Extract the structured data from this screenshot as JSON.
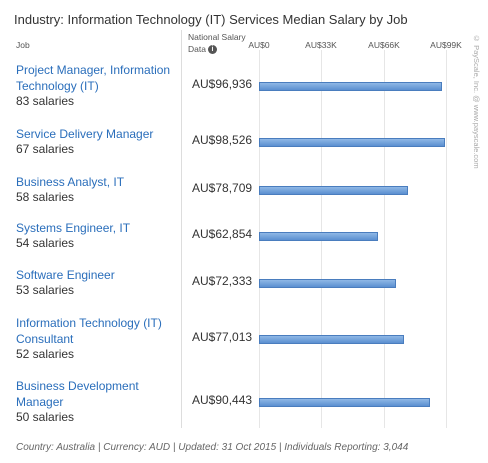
{
  "title": "Industry: Information Technology (IT) Services Median Salary by Job",
  "headers": {
    "job": "Job",
    "national_salary_line1": "National Salary",
    "national_salary_line2": "Data",
    "info_icon": "i"
  },
  "chart_data": {
    "type": "bar",
    "orientation": "horizontal",
    "title": "Industry: Information Technology (IT) Services Median Salary by Job",
    "xlim": [
      0,
      99000
    ],
    "tick_values": [
      0,
      33000,
      66000,
      99000
    ],
    "tick_labels": [
      "AU$0",
      "AU$33K",
      "AU$66K",
      "AU$99K"
    ],
    "grid": true,
    "series": [
      {
        "values": [
          96936,
          98526,
          78709,
          62854,
          72333,
          77013,
          90443
        ]
      }
    ],
    "rows": [
      {
        "job_lines": [
          "Project Manager, Information",
          "Technology (IT)"
        ],
        "count": "83 salaries",
        "salary_label": "AU$96,936",
        "value": 96936
      },
      {
        "job_lines": [
          "Service Delivery Manager"
        ],
        "count": "67 salaries",
        "salary_label": "AU$98,526",
        "value": 98526
      },
      {
        "job_lines": [
          "Business Analyst, IT"
        ],
        "count": "58 salaries",
        "salary_label": "AU$78,709",
        "value": 78709
      },
      {
        "job_lines": [
          "Systems Engineer, IT"
        ],
        "count": "54 salaries",
        "salary_label": "AU$62,854",
        "value": 62854
      },
      {
        "job_lines": [
          "Software Engineer"
        ],
        "count": "53 salaries",
        "salary_label": "AU$72,333",
        "value": 72333
      },
      {
        "job_lines": [
          "Information Technology (IT)",
          "Consultant"
        ],
        "count": "52 salaries",
        "salary_label": "AU$77,013",
        "value": 77013
      },
      {
        "job_lines": [
          "Business Development",
          "Manager"
        ],
        "count": "50 salaries",
        "salary_label": "AU$90,443",
        "value": 90443
      }
    ]
  },
  "footer": "Country: Australia | Currency: AUD | Updated: 31 Oct 2015 | Individuals Reporting: 3,044",
  "credit": "© PayScale, Inc. @ www.payscale.com"
}
